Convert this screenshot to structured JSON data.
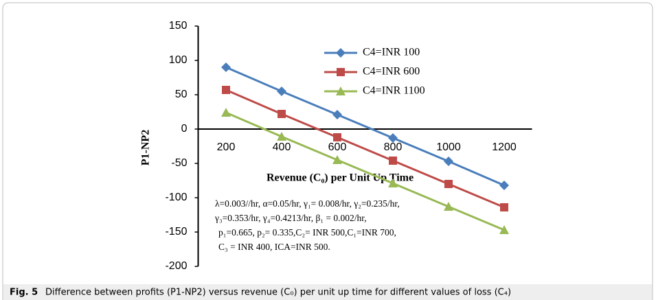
{
  "chart_data": {
    "type": "line",
    "xlabel": "Revenue (C₀) per Unit Up Time",
    "ylabel": "P1-NP2",
    "categories": [
      200,
      400,
      600,
      800,
      1000,
      1200
    ],
    "series": [
      {
        "name": "C4=INR 100",
        "color": "#4a7ebb",
        "marker": "diamond",
        "values": [
          90,
          55,
          21,
          -13,
          -47,
          -82
        ]
      },
      {
        "name": "C4=INR 600",
        "color": "#be4b48",
        "marker": "square",
        "values": [
          57,
          22,
          -12,
          -46,
          -80,
          -114
        ]
      },
      {
        "name": "C4=INR 1100",
        "color": "#98b954",
        "marker": "triangle",
        "values": [
          24,
          -11,
          -45,
          -79,
          -113,
          -147
        ]
      }
    ],
    "ylim": [
      -200,
      150
    ],
    "yticks": [
      -200,
      -150,
      -100,
      -50,
      0,
      50,
      100,
      150
    ],
    "grid": false,
    "annotation": [
      "λ=0.003//hr, α=0.05/hr, γ₁= 0.008/hr, γ₂=0.235/hr,",
      "γ₃=0.353/hr, γ₄=0.4213/hr, β₁ = 0.002/hr,",
      "p₁=0.665, p₂= 0.335,C₂= INR 500,C₁=INR 700,",
      "C₃ = INR 400, ICA=INR 500."
    ],
    "caption": {
      "label": "Fig. 5",
      "text": "Difference between profits (P1-NP2) versus revenue (C₀) per unit up time for different values of loss (C₄)"
    }
  }
}
